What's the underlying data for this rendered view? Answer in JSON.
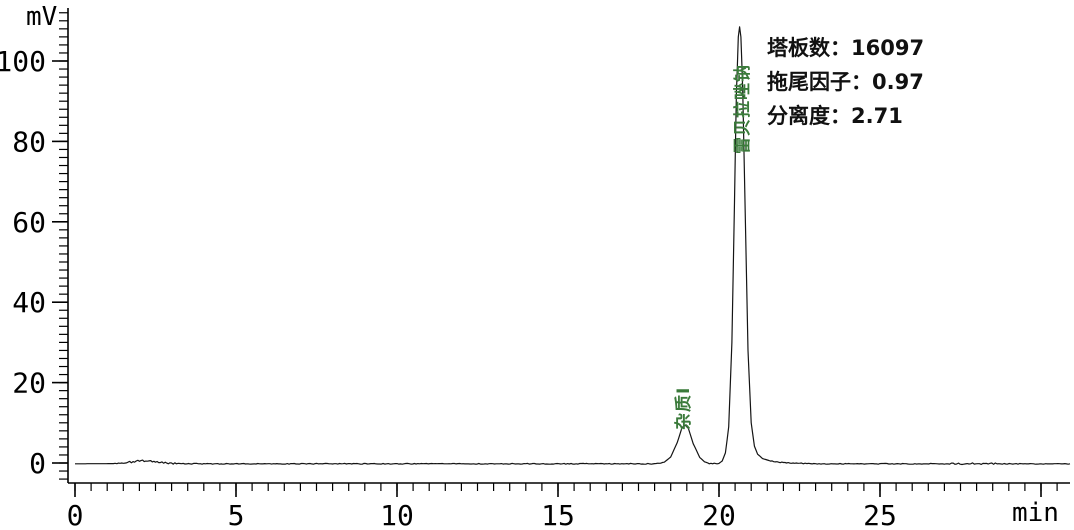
{
  "labels": {
    "y_unit": "mV",
    "x_unit": "min"
  },
  "annotation": {
    "lines": [
      "塔板数：16097",
      "拖尾因子：0.97",
      "分离度：2.71"
    ]
  },
  "peak_labels": {
    "impurity": "杂质I",
    "main": "雷贝拉唑钠"
  },
  "colors": {
    "trace": "#141414",
    "axis": "#000000",
    "text": "#111111",
    "peak_label_green": "#3a7a3a"
  },
  "chart_data": {
    "type": "line",
    "title": "",
    "xlabel": "min",
    "ylabel": "mV",
    "x_ticks": [
      0,
      5,
      10,
      15,
      20,
      25
    ],
    "x_extra_major_tick": 30,
    "y_ticks": [
      0,
      20,
      40,
      60,
      80,
      100
    ],
    "x_minor_step": 0.5,
    "y_minor_step": 2,
    "x_range": [
      0,
      30.9
    ],
    "y_range": [
      -5,
      112
    ],
    "grid": false,
    "legend": "none",
    "peaks": [
      {
        "label": "杂质I",
        "retention_min": 18.95,
        "height_mv": 9.4
      },
      {
        "label": "雷贝拉唑钠",
        "retention_min": 20.64,
        "height_mv": 108.5
      }
    ],
    "system_suitability": {
      "theoretical_plates": 16097,
      "tailing_factor": 0.97,
      "resolution": 2.71
    },
    "noise_zones": [
      [
        1.5,
        3.2
      ],
      [
        27.2,
        28.7
      ]
    ],
    "series": [
      {
        "name": "signal",
        "points": [
          [
            0.0,
            -0.2
          ],
          [
            1.3,
            -0.15
          ],
          [
            1.6,
            0.1
          ],
          [
            1.9,
            0.45
          ],
          [
            2.15,
            0.55
          ],
          [
            2.45,
            0.45
          ],
          [
            2.75,
            0.1
          ],
          [
            3.1,
            -0.15
          ],
          [
            4.0,
            -0.2
          ],
          [
            6.0,
            -0.2
          ],
          [
            8.0,
            -0.2
          ],
          [
            10.0,
            -0.2
          ],
          [
            12.0,
            -0.2
          ],
          [
            14.0,
            -0.2
          ],
          [
            16.0,
            -0.2
          ],
          [
            17.9,
            -0.2
          ],
          [
            18.05,
            -0.15
          ],
          [
            18.3,
            0.2
          ],
          [
            18.5,
            1.5
          ],
          [
            18.7,
            5.0
          ],
          [
            18.85,
            8.8
          ],
          [
            18.95,
            9.4
          ],
          [
            19.05,
            8.6
          ],
          [
            19.2,
            4.8
          ],
          [
            19.4,
            1.4
          ],
          [
            19.55,
            0.3
          ],
          [
            19.7,
            -0.1
          ],
          [
            19.95,
            -0.15
          ],
          [
            20.0,
            -0.1
          ],
          [
            20.1,
            0.5
          ],
          [
            20.2,
            2.5
          ],
          [
            20.3,
            9.0
          ],
          [
            20.4,
            30.0
          ],
          [
            20.48,
            65.0
          ],
          [
            20.54,
            92.0
          ],
          [
            20.6,
            106.0
          ],
          [
            20.64,
            108.5
          ],
          [
            20.68,
            106.0
          ],
          [
            20.74,
            92.0
          ],
          [
            20.82,
            60.0
          ],
          [
            20.9,
            28.0
          ],
          [
            21.0,
            10.0
          ],
          [
            21.1,
            4.2
          ],
          [
            21.2,
            2.2
          ],
          [
            21.35,
            1.1
          ],
          [
            21.6,
            0.5
          ],
          [
            21.9,
            0.15
          ],
          [
            22.4,
            -0.05
          ],
          [
            23.0,
            -0.2
          ],
          [
            25.0,
            -0.2
          ],
          [
            27.0,
            -0.2
          ],
          [
            28.8,
            -0.2
          ],
          [
            30.9,
            -0.2
          ]
        ]
      }
    ]
  }
}
